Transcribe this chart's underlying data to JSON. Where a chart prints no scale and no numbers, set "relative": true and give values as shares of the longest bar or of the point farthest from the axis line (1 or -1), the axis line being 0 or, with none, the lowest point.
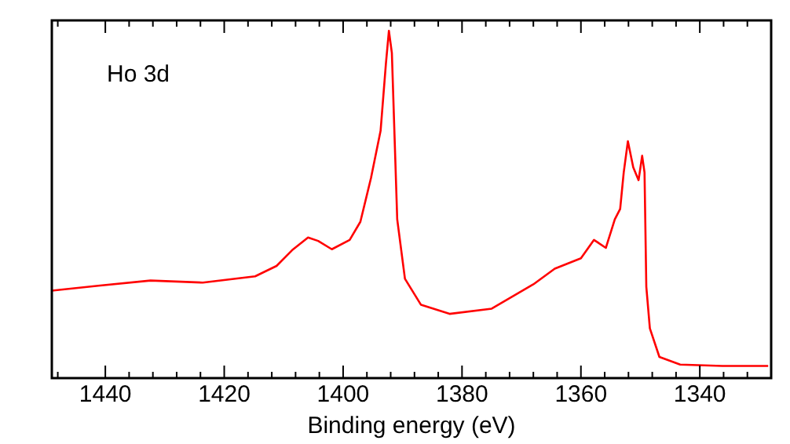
{
  "chart_data": {
    "type": "line",
    "xlabel": "Binding energy (eV)",
    "annotations": [
      "Ho 3d"
    ],
    "relative": true,
    "xlim": [
      1449,
      1328
    ],
    "xticks": [
      {
        "value": 1448,
        "label": null
      },
      1440,
      {
        "value": 1436,
        "label": null
      },
      {
        "value": 1432,
        "label": null
      },
      {
        "value": 1428,
        "label": null
      },
      {
        "value": 1424,
        "label": null
      },
      1420,
      {
        "value": 1416,
        "label": null
      },
      {
        "value": 1412,
        "label": null
      },
      {
        "value": 1408,
        "label": null
      },
      {
        "value": 1404,
        "label": null
      },
      1400,
      {
        "value": 1396,
        "label": null
      },
      {
        "value": 1392,
        "label": null
      },
      {
        "value": 1388,
        "label": null
      },
      {
        "value": 1384,
        "label": null
      },
      1380,
      {
        "value": 1376,
        "label": null
      },
      {
        "value": 1372,
        "label": null
      },
      {
        "value": 1368,
        "label": null
      },
      {
        "value": 1364,
        "label": null
      },
      1360,
      {
        "value": 1356,
        "label": null
      },
      {
        "value": 1352,
        "label": null
      },
      {
        "value": 1348,
        "label": null
      },
      {
        "value": 1344,
        "label": null
      },
      1340,
      {
        "value": 1336,
        "label": null
      },
      {
        "value": 1332,
        "label": null
      }
    ],
    "grid": false,
    "legend": false,
    "marker": "none",
    "line_style": "solid",
    "series": [
      {
        "color": "#ff0000",
        "x": [
          1449.0,
          1441.2,
          1432.4,
          1423.6,
          1414.8,
          1411.2,
          1408.6,
          1405.9,
          1404.2,
          1401.9,
          1398.9,
          1397.1,
          1395.3,
          1393.7,
          1392.8,
          1392.3,
          1391.8,
          1390.9,
          1389.6,
          1386.9,
          1382.1,
          1375.0,
          1368.0,
          1364.4,
          1360.0,
          1357.8,
          1355.8,
          1354.3,
          1353.4,
          1352.8,
          1352.1,
          1351.2,
          1350.3,
          1349.7,
          1349.3,
          1349.0,
          1348.4,
          1346.8,
          1343.3,
          1336.2,
          1328.5
        ],
        "values": [
          0.252,
          0.266,
          0.281,
          0.275,
          0.293,
          0.323,
          0.368,
          0.405,
          0.395,
          0.371,
          0.398,
          0.45,
          0.577,
          0.712,
          0.906,
          1.0,
          0.936,
          0.457,
          0.286,
          0.211,
          0.185,
          0.2,
          0.27,
          0.315,
          0.345,
          0.398,
          0.375,
          0.457,
          0.487,
          0.592,
          0.682,
          0.607,
          0.57,
          0.64,
          0.592,
          0.263,
          0.143,
          0.061,
          0.039,
          0.035,
          0.035
        ]
      }
    ]
  }
}
